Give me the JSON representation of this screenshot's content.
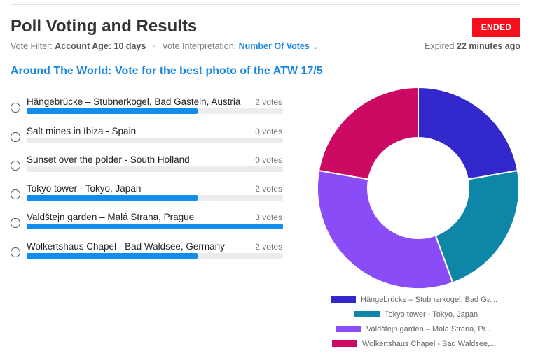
{
  "header": {
    "title": "Poll Voting and Results",
    "status_badge": "ENDED",
    "vote_filter_label": "Vote Filter:",
    "vote_filter_value": "Account Age: 10 days",
    "separator": "·",
    "interpretation_label": "Vote Interpretation:",
    "interpretation_value": "Number Of Votes",
    "expired_prefix": "Expired",
    "expired_value": "22 minutes ago"
  },
  "poll": {
    "title": "Around The World: Vote for the best photo of the ATW 17/5",
    "max_votes": 3,
    "options": [
      {
        "label": "Hängebrücke – Stubnerkogel, Bad Gastein, Austria",
        "votes": 2,
        "votes_text": "2 votes"
      },
      {
        "label": "Salt mines in Ibiza - Spain",
        "votes": 0,
        "votes_text": "0 votes"
      },
      {
        "label": "Sunset over the polder - South Holland",
        "votes": 0,
        "votes_text": "0 votes"
      },
      {
        "label": "Tokyo tower - Tokyo, Japan",
        "votes": 2,
        "votes_text": "2 votes"
      },
      {
        "label": "Valdštejn garden – Malá Strana, Prague",
        "votes": 3,
        "votes_text": "3 votes"
      },
      {
        "label": "Wolkertshaus Chapel - Bad Waldsee, Germany",
        "votes": 2,
        "votes_text": "2 votes"
      }
    ]
  },
  "colors": {
    "accent": "#1a88e0",
    "bar": "#108ded",
    "badge": "#f3101c"
  },
  "chart_data": {
    "type": "pie",
    "variant": "donut",
    "categories": [
      "Hängebrücke – Stubnerkogel, Bad Ga...",
      "Tokyo tower - Tokyo, Japan",
      "Valdštejn garden – Malá Strana, Pr...",
      "Wolkertshaus Chapel - Bad Waldsee,..."
    ],
    "values": [
      2,
      2,
      3,
      2
    ],
    "colors": [
      "#3228cc",
      "#0e86a8",
      "#8a4cf7",
      "#cc0a63"
    ],
    "legend": "bottom"
  }
}
